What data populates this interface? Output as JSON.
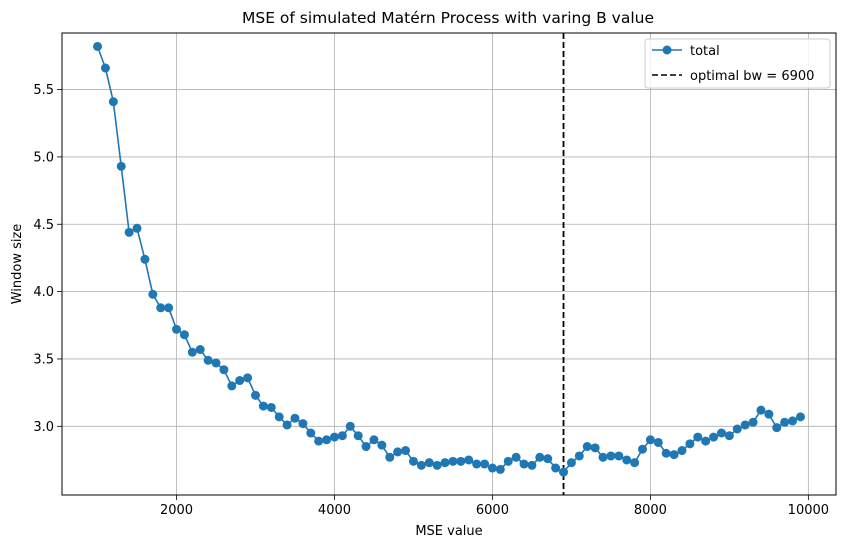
{
  "chart_data": {
    "type": "line",
    "title": "MSE of simulated Matérn Process with varing B value",
    "xlabel": "MSE value",
    "ylabel": "Window size",
    "xlim": [
      550,
      10350
    ],
    "ylim": [
      2.49,
      5.92
    ],
    "xticks": [
      2000,
      4000,
      6000,
      8000,
      10000
    ],
    "yticks": [
      3.0,
      3.5,
      4.0,
      4.5,
      5.0,
      5.5
    ],
    "xtick_labels": [
      "2000",
      "4000",
      "6000",
      "8000",
      "10000"
    ],
    "ytick_labels": [
      "3.0",
      "3.5",
      "4.0",
      "4.5",
      "5.0",
      "5.5"
    ],
    "grid": true,
    "legend_position": "top-right",
    "series": [
      {
        "name": "total",
        "color": "#1f77b4",
        "marker": "circle",
        "x": [
          1000,
          1100,
          1200,
          1300,
          1400,
          1500,
          1600,
          1700,
          1800,
          1900,
          2000,
          2100,
          2200,
          2300,
          2400,
          2500,
          2600,
          2700,
          2800,
          2900,
          3000,
          3100,
          3200,
          3300,
          3400,
          3500,
          3600,
          3700,
          3800,
          3900,
          4000,
          4100,
          4200,
          4300,
          4400,
          4500,
          4600,
          4700,
          4800,
          4900,
          5000,
          5100,
          5200,
          5300,
          5400,
          5500,
          5600,
          5700,
          5800,
          5900,
          6000,
          6100,
          6200,
          6300,
          6400,
          6500,
          6600,
          6700,
          6800,
          6900,
          7000,
          7100,
          7200,
          7300,
          7400,
          7500,
          7600,
          7700,
          7800,
          7900,
          8000,
          8100,
          8200,
          8300,
          8400,
          8500,
          8600,
          8700,
          8800,
          8900,
          9000,
          9100,
          9200,
          9300,
          9400,
          9500,
          9600,
          9700,
          9800,
          9900
        ],
        "y": [
          5.82,
          5.66,
          5.41,
          4.93,
          4.44,
          4.47,
          4.24,
          3.98,
          3.88,
          3.88,
          3.72,
          3.68,
          3.55,
          3.57,
          3.49,
          3.47,
          3.42,
          3.3,
          3.34,
          3.36,
          3.23,
          3.15,
          3.14,
          3.07,
          3.01,
          3.06,
          3.02,
          2.95,
          2.89,
          2.9,
          2.92,
          2.93,
          3.0,
          2.93,
          2.85,
          2.9,
          2.86,
          2.77,
          2.81,
          2.82,
          2.74,
          2.71,
          2.73,
          2.71,
          2.73,
          2.74,
          2.74,
          2.75,
          2.72,
          2.72,
          2.69,
          2.68,
          2.74,
          2.77,
          2.72,
          2.71,
          2.77,
          2.76,
          2.69,
          2.66,
          2.73,
          2.78,
          2.85,
          2.84,
          2.77,
          2.78,
          2.78,
          2.75,
          2.73,
          2.83,
          2.9,
          2.88,
          2.8,
          2.79,
          2.82,
          2.87,
          2.92,
          2.89,
          2.92,
          2.95,
          2.93,
          2.98,
          3.01,
          3.03,
          3.12,
          3.09,
          2.99,
          3.03,
          3.04,
          3.07
        ]
      }
    ],
    "vline": {
      "name": "optimal bw = 6900",
      "x": 6900,
      "color": "#000000",
      "style": "dashed"
    }
  }
}
